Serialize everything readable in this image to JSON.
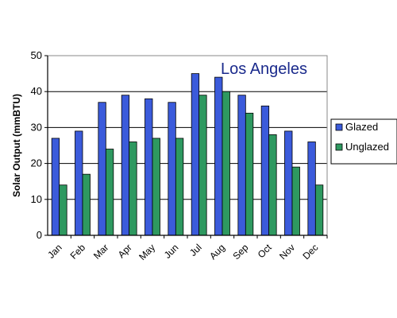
{
  "chart_data": {
    "type": "bar",
    "title": "Los Angeles",
    "xlabel": "",
    "ylabel": "Solar Output (mmBTU)",
    "ylim": [
      0,
      50
    ],
    "yticks": [
      0,
      10,
      20,
      30,
      40,
      50
    ],
    "grid": true,
    "legend_position": "right",
    "categories": [
      "Jan",
      "Feb",
      "Mar",
      "Apr",
      "May",
      "Jun",
      "Jul",
      "Aug",
      "Sep",
      "Oct",
      "Nov",
      "Dec"
    ],
    "series": [
      {
        "name": "Glazed",
        "color": "#3b5bdb",
        "values": [
          27,
          29,
          37,
          39,
          38,
          37,
          45,
          44,
          39,
          36,
          29,
          26
        ]
      },
      {
        "name": "Unglazed",
        "color": "#2e9960",
        "values": [
          14,
          17,
          24,
          26,
          27,
          27,
          39,
          40,
          34,
          28,
          19,
          14
        ]
      }
    ]
  }
}
